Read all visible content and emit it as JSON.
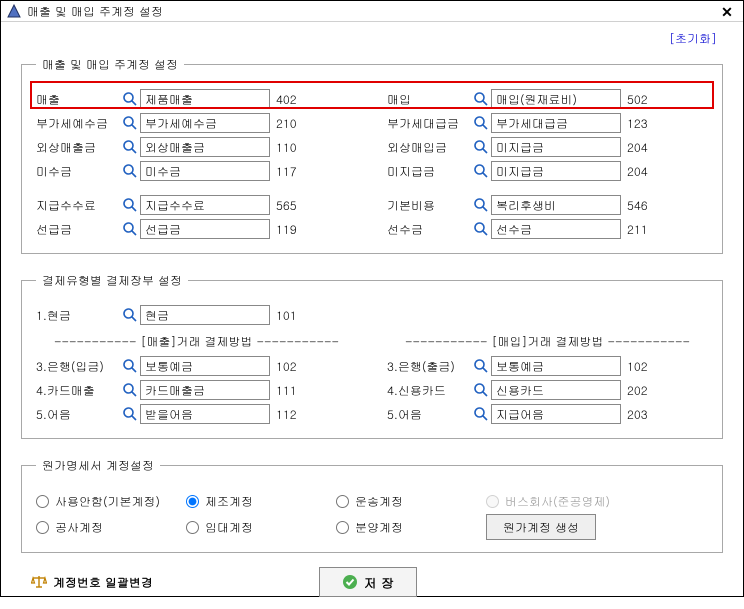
{
  "window": {
    "title": "매출 및 매입 주계정 설정",
    "close_glyph": "✕"
  },
  "init_link": "[초기화]",
  "section1": {
    "legend": "매출 및 매입 주계정 설정",
    "rows_left": [
      {
        "label": "매출",
        "value": "제품매출",
        "code": "402"
      },
      {
        "label": "부가세예수금",
        "value": "부가세예수금",
        "code": "210"
      },
      {
        "label": "외상매출금",
        "value": "외상매출금",
        "code": "110"
      },
      {
        "label": "미수금",
        "value": "미수금",
        "code": "117"
      }
    ],
    "rows_left2": [
      {
        "label": "지급수수료",
        "value": "지급수수료",
        "code": "565"
      },
      {
        "label": "선급금",
        "value": "선급금",
        "code": "119"
      }
    ],
    "rows_right": [
      {
        "label": "매입",
        "value": "매입(원재료비)",
        "code": "502"
      },
      {
        "label": "부가세대급금",
        "value": "부가세대급금",
        "code": "123"
      },
      {
        "label": "외상매입금",
        "value": "미지급금",
        "code": "204"
      },
      {
        "label": "미지급금",
        "value": "미지급금",
        "code": "204"
      }
    ],
    "rows_right2": [
      {
        "label": "기본비용",
        "value": "복리후생비",
        "code": "546"
      },
      {
        "label": "선수금",
        "value": "선수금",
        "code": "211"
      }
    ]
  },
  "section2": {
    "legend": "결제유형별 결제장부 설정",
    "cash": {
      "label": "1.현금",
      "value": "현금",
      "code": "101"
    },
    "sales_header": "----------- [매출]거래 결제방법 -----------",
    "purchase_header": "----------- [매입]거래 결제방법 -----------",
    "sales_rows": [
      {
        "label": "3.은행(입금)",
        "value": "보통예금",
        "code": "102"
      },
      {
        "label": "4.카드매출",
        "value": "카드매출금",
        "code": "111"
      },
      {
        "label": "5.어음",
        "value": "받을어음",
        "code": "112"
      }
    ],
    "purchase_rows": [
      {
        "label": "3.은행(출금)",
        "value": "보통예금",
        "code": "102"
      },
      {
        "label": "4.신용카드",
        "value": "신용카드",
        "code": "202"
      },
      {
        "label": "5.어음",
        "value": "지급어음",
        "code": "203"
      }
    ]
  },
  "section3": {
    "legend": "원가명세서 계정설정",
    "radios": [
      {
        "label": "사용안함(기본계정)",
        "checked": false,
        "disabled": false
      },
      {
        "label": "제조계정",
        "checked": true,
        "disabled": false
      },
      {
        "label": "운송계정",
        "checked": false,
        "disabled": false
      },
      {
        "label": "버스회사(준공영제)",
        "checked": false,
        "disabled": true
      },
      {
        "label": "공사계정",
        "checked": false,
        "disabled": false
      },
      {
        "label": "임대계정",
        "checked": false,
        "disabled": false
      },
      {
        "label": "분양계정",
        "checked": false,
        "disabled": false
      }
    ],
    "gen_button": "원가계정 생성"
  },
  "bottom": {
    "bulk_change": "계정번호 일괄변경",
    "save": "저 장"
  },
  "colors": {
    "highlight": "#e00000",
    "link": "#0000d0"
  }
}
